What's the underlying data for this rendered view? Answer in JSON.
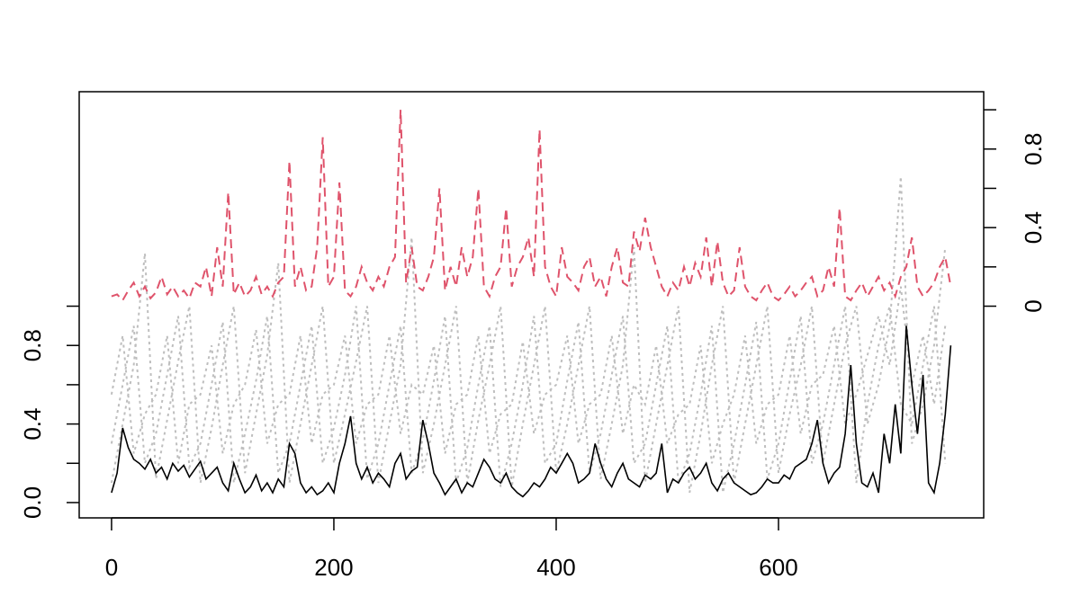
{
  "chart_data": {
    "type": "line",
    "xlim": [
      -29.1,
      784.6
    ],
    "xticks": [
      0,
      200,
      400,
      600
    ],
    "ylim": [
      -0.078,
      2.092
    ],
    "yticks": [
      {
        "value": 0,
        "label": "0.0"
      },
      0.2,
      {
        "value": 0.4,
        "label": "0.4"
      },
      0.6,
      {
        "value": 0.8,
        "label": "0.8"
      },
      1.0
    ],
    "y2lim": [
      -1.078,
      1.092
    ],
    "y2ticks": [
      0,
      0.2,
      {
        "value": 0.4,
        "label": "0.4"
      },
      0.6,
      {
        "value": 0.8,
        "label": "0.8"
      },
      1.0
    ],
    "x": [
      0,
      5,
      10,
      15,
      20,
      25,
      30,
      35,
      40,
      45,
      50,
      55,
      60,
      65,
      70,
      75,
      80,
      85,
      90,
      95,
      100,
      105,
      110,
      115,
      120,
      125,
      130,
      135,
      140,
      145,
      150,
      155,
      160,
      165,
      170,
      175,
      180,
      185,
      190,
      195,
      200,
      205,
      210,
      215,
      220,
      225,
      230,
      235,
      240,
      245,
      250,
      255,
      260,
      265,
      270,
      275,
      280,
      285,
      290,
      295,
      300,
      305,
      310,
      315,
      320,
      325,
      330,
      335,
      340,
      345,
      350,
      355,
      360,
      365,
      370,
      375,
      380,
      385,
      390,
      395,
      400,
      405,
      410,
      415,
      420,
      425,
      430,
      435,
      440,
      445,
      450,
      455,
      460,
      465,
      470,
      475,
      480,
      485,
      490,
      495,
      500,
      505,
      510,
      515,
      520,
      525,
      530,
      535,
      540,
      545,
      550,
      555,
      560,
      565,
      570,
      575,
      580,
      585,
      590,
      595,
      600,
      605,
      610,
      615,
      620,
      625,
      630,
      635,
      640,
      645,
      650,
      655,
      660,
      665,
      670,
      675,
      680,
      685,
      690,
      695,
      700,
      705,
      710,
      715,
      720,
      725,
      730,
      735,
      740,
      745,
      750,
      755
    ],
    "series": [
      {
        "color": "#bebebe",
        "style": "dotted",
        "x": [
          0,
          10,
          20,
          30,
          40,
          50,
          60,
          70,
          80,
          90,
          100,
          110,
          120,
          130,
          140,
          150,
          160,
          170,
          180,
          190,
          200,
          210,
          220,
          230,
          240,
          250,
          260,
          270,
          280,
          290,
          300,
          310,
          320,
          330,
          340,
          350,
          360,
          370,
          380,
          390,
          400,
          410,
          420,
          430,
          440,
          450,
          460,
          470,
          480,
          490,
          500,
          510,
          520,
          530,
          540,
          550,
          560,
          570,
          580,
          590,
          600,
          610,
          620,
          630,
          640,
          650,
          660,
          670,
          680,
          690,
          700,
          710,
          720,
          730,
          740,
          750
        ],
        "values": [
          0.1,
          0.4,
          0.7,
          1.27,
          0.12,
          0.42,
          0.72,
          1.0,
          0.1,
          0.38,
          0.7,
          1.0,
          0.15,
          0.45,
          0.75,
          1.22,
          0.1,
          0.4,
          0.7,
          1.0,
          0.2,
          0.45,
          0.72,
          1.0,
          0.1,
          0.4,
          0.7,
          1.35,
          0.15,
          0.4,
          0.7,
          1.0,
          0.1,
          0.42,
          0.7,
          1.0,
          0.08,
          0.4,
          0.7,
          1.0,
          0.15,
          0.4,
          0.7,
          1.0,
          0.12,
          0.4,
          0.7,
          1.3,
          0.1,
          0.4,
          0.7,
          1.0,
          0.05,
          0.35,
          0.7,
          1.0,
          0.1,
          0.4,
          0.7,
          1.0,
          0.15,
          0.45,
          0.7,
          1.0,
          0.2,
          0.5,
          0.8,
          1.0,
          0.4,
          0.6,
          0.9,
          1.66,
          0.3,
          0.5,
          0.8,
          1.3
        ]
      },
      {
        "color": "#bebebe",
        "style": "dotted",
        "x": [
          0,
          10,
          20,
          30,
          40,
          50,
          60,
          70,
          80,
          90,
          100,
          110,
          120,
          130,
          140,
          150,
          160,
          170,
          180,
          190,
          200,
          210,
          220,
          230,
          240,
          250,
          260,
          270,
          280,
          290,
          300,
          310,
          320,
          330,
          340,
          350,
          360,
          370,
          380,
          390,
          400,
          410,
          420,
          430,
          440,
          450,
          460,
          470,
          480,
          490,
          500,
          510,
          520,
          530,
          540,
          550,
          560,
          570,
          580,
          590,
          600,
          610,
          620,
          630,
          640,
          650,
          660,
          670,
          680,
          690,
          700,
          710,
          720,
          730,
          740,
          750
        ],
        "values": [
          0.3,
          0.6,
          0.9,
          0.2,
          0.35,
          0.65,
          0.95,
          0.18,
          0.3,
          0.6,
          0.92,
          0.1,
          0.35,
          0.62,
          0.95,
          0.15,
          0.3,
          0.6,
          0.9,
          0.2,
          0.38,
          0.65,
          1.0,
          0.12,
          0.3,
          0.6,
          0.9,
          0.15,
          0.32,
          0.62,
          0.95,
          0.1,
          0.28,
          0.6,
          0.9,
          0.08,
          0.3,
          0.6,
          0.95,
          0.2,
          0.3,
          0.62,
          0.92,
          0.15,
          0.35,
          0.65,
          0.95,
          0.2,
          0.3,
          0.6,
          0.9,
          0.1,
          0.25,
          0.55,
          0.9,
          0.05,
          0.3,
          0.6,
          0.92,
          0.12,
          0.3,
          0.62,
          0.95,
          0.2,
          0.4,
          0.7,
          1.0,
          0.1,
          0.5,
          0.8,
          1.0,
          0.5,
          0.4,
          0.7,
          1.0,
          0.2
        ]
      },
      {
        "color": "#bebebe",
        "style": "dotted",
        "x": [
          0,
          10,
          20,
          30,
          40,
          50,
          60,
          70,
          80,
          90,
          100,
          110,
          120,
          130,
          140,
          150,
          160,
          170,
          180,
          190,
          200,
          210,
          220,
          230,
          240,
          250,
          260,
          270,
          280,
          290,
          300,
          310,
          320,
          330,
          340,
          350,
          360,
          370,
          380,
          390,
          400,
          410,
          420,
          430,
          440,
          450,
          460,
          470,
          480,
          490,
          500,
          510,
          520,
          530,
          540,
          550,
          560,
          570,
          580,
          590,
          600,
          610,
          620,
          630,
          640,
          650,
          660,
          670,
          680,
          690,
          700,
          710,
          720,
          730,
          740,
          750
        ],
        "values": [
          0.55,
          0.85,
          0.25,
          0.45,
          0.55,
          0.85,
          0.2,
          0.5,
          0.55,
          0.8,
          0.25,
          0.5,
          0.6,
          0.88,
          0.3,
          0.5,
          0.55,
          0.85,
          0.3,
          0.55,
          0.6,
          0.85,
          0.3,
          0.5,
          0.55,
          0.85,
          0.35,
          0.6,
          0.55,
          0.8,
          0.25,
          0.5,
          0.55,
          0.85,
          0.25,
          0.45,
          0.5,
          0.82,
          0.35,
          0.55,
          0.6,
          0.85,
          0.3,
          0.5,
          0.55,
          0.85,
          0.35,
          0.6,
          0.5,
          0.8,
          0.3,
          0.45,
          0.5,
          0.8,
          0.2,
          0.4,
          0.55,
          0.85,
          0.3,
          0.5,
          0.55,
          0.85,
          0.35,
          0.6,
          0.65,
          0.9,
          0.4,
          0.55,
          0.75,
          0.95,
          0.7,
          1.1,
          0.6,
          0.85,
          0.5,
          0.9
        ]
      },
      {
        "color": "#000000",
        "style": "solid",
        "values": [
          0.05,
          0.15,
          0.38,
          0.28,
          0.22,
          0.2,
          0.17,
          0.22,
          0.15,
          0.18,
          0.12,
          0.2,
          0.16,
          0.19,
          0.13,
          0.17,
          0.21,
          0.12,
          0.15,
          0.18,
          0.1,
          0.06,
          0.2,
          0.12,
          0.05,
          0.08,
          0.14,
          0.06,
          0.1,
          0.05,
          0.12,
          0.08,
          0.3,
          0.25,
          0.1,
          0.05,
          0.08,
          0.04,
          0.06,
          0.1,
          0.05,
          0.2,
          0.3,
          0.44,
          0.2,
          0.12,
          0.18,
          0.1,
          0.15,
          0.12,
          0.08,
          0.2,
          0.25,
          0.12,
          0.16,
          0.18,
          0.42,
          0.3,
          0.15,
          0.1,
          0.04,
          0.08,
          0.12,
          0.05,
          0.1,
          0.08,
          0.15,
          0.22,
          0.18,
          0.12,
          0.1,
          0.15,
          0.08,
          0.05,
          0.03,
          0.06,
          0.1,
          0.08,
          0.12,
          0.18,
          0.15,
          0.2,
          0.25,
          0.2,
          0.1,
          0.12,
          0.15,
          0.3,
          0.2,
          0.12,
          0.08,
          0.15,
          0.2,
          0.12,
          0.1,
          0.08,
          0.14,
          0.12,
          0.15,
          0.3,
          0.05,
          0.12,
          0.1,
          0.15,
          0.18,
          0.12,
          0.15,
          0.2,
          0.1,
          0.06,
          0.12,
          0.15,
          0.1,
          0.08,
          0.06,
          0.04,
          0.05,
          0.08,
          0.12,
          0.1,
          0.1,
          0.14,
          0.12,
          0.18,
          0.2,
          0.22,
          0.3,
          0.42,
          0.2,
          0.1,
          0.15,
          0.18,
          0.35,
          0.7,
          0.3,
          0.1,
          0.08,
          0.15,
          0.05,
          0.35,
          0.2,
          0.5,
          0.25,
          0.9,
          0.6,
          0.35,
          0.65,
          0.1,
          0.05,
          0.2,
          0.45,
          0.8
        ]
      },
      {
        "color": "#df536b",
        "style": "dashed",
        "axis": "y2",
        "values": [
          0.05,
          0.06,
          0.03,
          0.08,
          0.12,
          0.05,
          0.1,
          0.04,
          0.07,
          0.15,
          0.06,
          0.1,
          0.05,
          0.08,
          0.04,
          0.12,
          0.1,
          0.2,
          0.05,
          0.3,
          0.1,
          0.58,
          0.06,
          0.12,
          0.05,
          0.08,
          0.15,
          0.06,
          0.1,
          0.05,
          0.12,
          0.15,
          0.74,
          0.1,
          0.2,
          0.08,
          0.1,
          0.3,
          0.86,
          0.1,
          0.15,
          0.63,
          0.08,
          0.05,
          0.1,
          0.2,
          0.12,
          0.08,
          0.15,
          0.1,
          0.2,
          0.25,
          1.0,
          0.12,
          0.3,
          0.1,
          0.08,
          0.15,
          0.25,
          0.6,
          0.08,
          0.2,
          0.1,
          0.3,
          0.15,
          0.25,
          0.6,
          0.1,
          0.05,
          0.15,
          0.2,
          0.5,
          0.1,
          0.2,
          0.25,
          0.35,
          0.15,
          0.9,
          0.2,
          0.1,
          0.05,
          0.3,
          0.15,
          0.12,
          0.08,
          0.2,
          0.25,
          0.1,
          0.15,
          0.05,
          0.2,
          0.3,
          0.12,
          0.1,
          0.38,
          0.28,
          0.45,
          0.3,
          0.2,
          0.1,
          0.05,
          0.12,
          0.08,
          0.2,
          0.1,
          0.22,
          0.15,
          0.35,
          0.1,
          0.33,
          0.12,
          0.05,
          0.08,
          0.3,
          0.1,
          0.05,
          0.03,
          0.08,
          0.12,
          0.05,
          0.03,
          0.06,
          0.1,
          0.05,
          0.08,
          0.12,
          0.15,
          0.05,
          0.08,
          0.2,
          0.1,
          0.5,
          0.05,
          0.03,
          0.08,
          0.12,
          0.05,
          0.1,
          0.15,
          0.08,
          0.12,
          0.05,
          0.15,
          0.2,
          0.35,
          0.1,
          0.05,
          0.08,
          0.12,
          0.2,
          0.25,
          0.1
        ]
      }
    ]
  }
}
